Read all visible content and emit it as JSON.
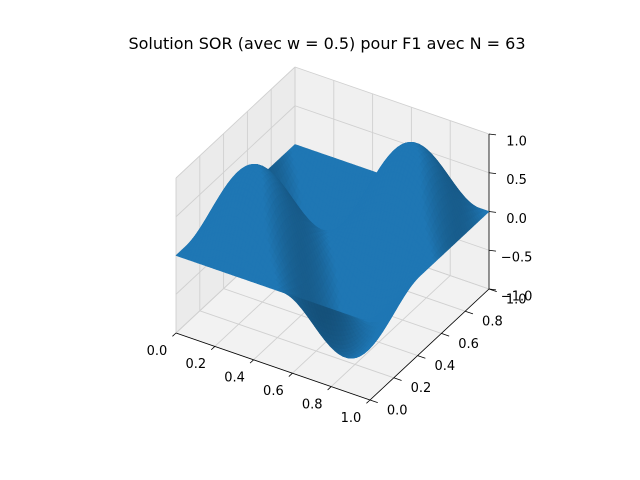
{
  "chart_data": {
    "type": "surface",
    "title": "Solution SOR (avec w = 0.5) pour F1 avec N = 63",
    "xlabel": "",
    "ylabel": "",
    "zlabel": "",
    "x_ticks": [
      "0.0",
      "0.2",
      "0.4",
      "0.6",
      "0.8",
      "1.0"
    ],
    "y_ticks": [
      "0.0",
      "0.2",
      "0.4",
      "0.6",
      "0.8",
      "1.0"
    ],
    "z_ticks": [
      "−1.0",
      "−0.5",
      "0.0",
      "0.5",
      "1.0"
    ],
    "xlim": [
      0,
      1
    ],
    "ylim": [
      0,
      1
    ],
    "zlim": [
      -1,
      1
    ],
    "grid": true,
    "surface": {
      "function": "sin(2πx)·sin(2πy)",
      "resolution": 63,
      "color": "#1f77b4"
    }
  }
}
